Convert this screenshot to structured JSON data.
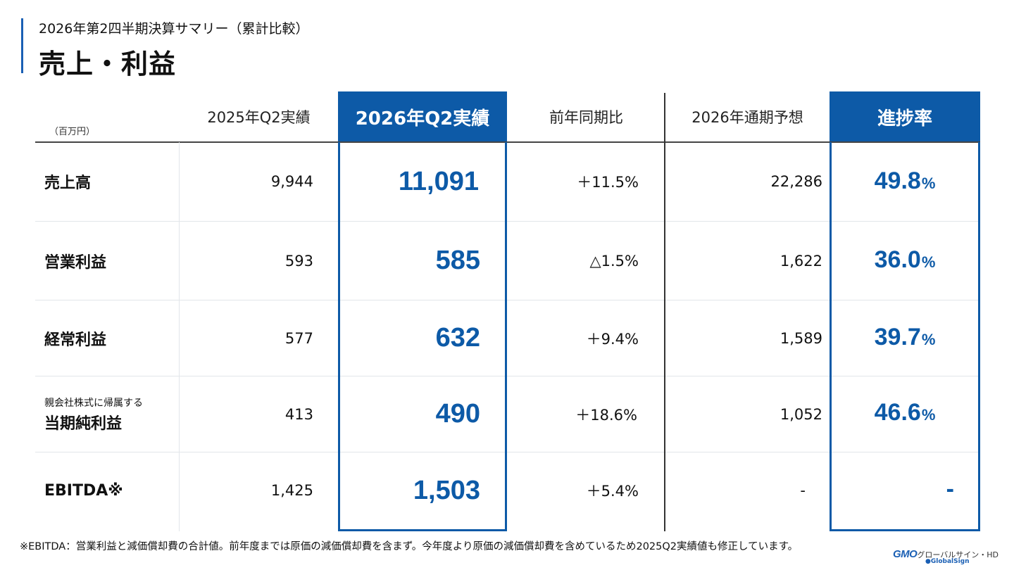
{
  "header": {
    "subtitle": "2026年第2四半期決算サマリー（累計比較）",
    "title": "売上・利益"
  },
  "table": {
    "unit": "（百万円）",
    "columns": [
      "2025年Q2実績",
      "2026年Q2実績",
      "前年同期比",
      "2026年通期予想",
      "進捗率"
    ],
    "rows": [
      {
        "label": "売上高",
        "prev": "9,944",
        "curr": "11,091",
        "yoy": "＋11.5%",
        "forecast": "22,286",
        "progress": "49.8",
        "progress_unit": "%"
      },
      {
        "label": "営業利益",
        "prev": "593",
        "curr": "585",
        "yoy": "△1.5%",
        "forecast": "1,622",
        "progress": "36.0",
        "progress_unit": "%"
      },
      {
        "label": "経常利益",
        "prev": "577",
        "curr": "632",
        "yoy": "＋9.4%",
        "forecast": "1,589",
        "progress": "39.7",
        "progress_unit": "%"
      },
      {
        "label_small": "親会社株式に帰属する",
        "label": "当期純利益",
        "prev": "413",
        "curr": "490",
        "yoy": "＋18.6%",
        "forecast": "1,052",
        "progress": "46.6",
        "progress_unit": "%"
      },
      {
        "label": "EBITDA※",
        "prev": "1,425",
        "curr": "1,503",
        "yoy": "＋5.4%",
        "forecast": "-",
        "progress": "-",
        "progress_unit": ""
      }
    ]
  },
  "footnote": "※EBITDA：営業利益と減価償却費の合計値。前年度までは原価の減価償却費を含まず。今年度より原価の減価償却費を含めているため2025Q2実績値も修正しています。",
  "logo": {
    "brand": "GMO",
    "company": "グローバルサイン・HD",
    "sub": "●GlobalSign"
  },
  "colors": {
    "accent": "#0d5aa7",
    "text": "#111111"
  }
}
